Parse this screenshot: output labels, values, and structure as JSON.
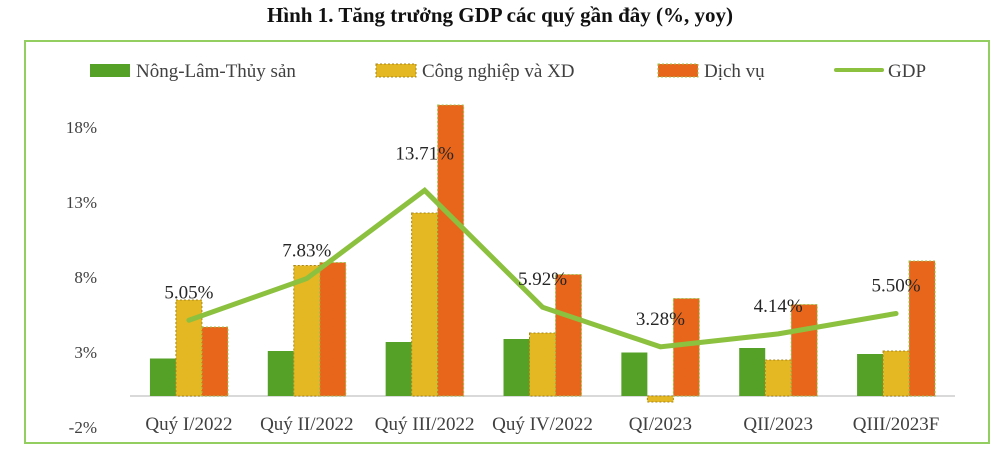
{
  "title": "Hình 1. Tăng trưởng GDP các quý gần đây (%, yoy)",
  "colors": {
    "agri": "#55a127",
    "industry": "#e3b823",
    "services": "#e8661c",
    "gdp": "#8cc13f",
    "frame": "#92cf60",
    "axis": "#d9d9d9",
    "text": "#404040"
  },
  "chart_data": {
    "type": "bar",
    "title": "Hình 1. Tăng trưởng GDP các quý gần đây (%, yoy)",
    "xlabel": "",
    "ylabel": "",
    "ylim": [
      -2,
      20
    ],
    "yticks": [
      -2,
      3,
      8,
      13,
      18
    ],
    "ytick_labels": [
      "-2%",
      "3%",
      "8%",
      "13%",
      "18%"
    ],
    "grid": false,
    "legend_position": "top",
    "categories": [
      "Quý I/2022",
      "Quý II/2022",
      "Quý III/2022",
      "Quý IV/2022",
      "QI/2023",
      "QII/2023",
      "QIII/2023F"
    ],
    "series": [
      {
        "name": "Nông-Lâm-Thủy sản",
        "type": "bar",
        "color_key": "agri",
        "values": [
          2.5,
          3.0,
          3.6,
          3.8,
          2.9,
          3.2,
          2.8
        ]
      },
      {
        "name": "Công nghiệp và XD",
        "type": "bar",
        "color_key": "industry",
        "values": [
          6.4,
          8.7,
          12.2,
          4.2,
          -0.4,
          2.4,
          3.0
        ]
      },
      {
        "name": "Dịch vụ",
        "type": "bar",
        "color_key": "services",
        "values": [
          4.6,
          8.9,
          19.4,
          8.1,
          6.5,
          6.1,
          9.0
        ]
      },
      {
        "name": "GDP",
        "type": "line",
        "color_key": "gdp",
        "values": [
          5.05,
          7.83,
          13.71,
          5.92,
          3.28,
          4.14,
          5.5
        ]
      }
    ],
    "data_labels": [
      "5.05%",
      "7.83%",
      "13.71%",
      "5.92%",
      "3.28%",
      "4.14%",
      "5.50%"
    ]
  }
}
